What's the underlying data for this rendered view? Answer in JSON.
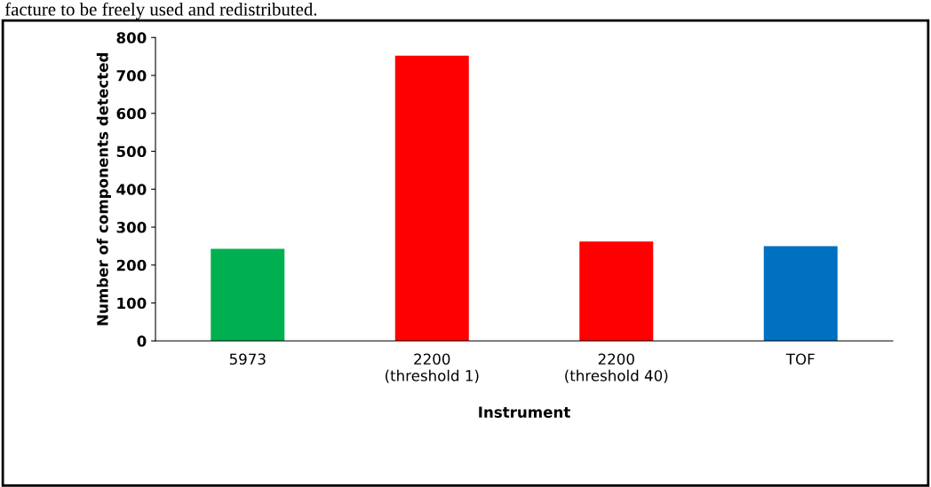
{
  "chart_data": {
    "type": "bar",
    "categories": [
      "5973",
      "2200\n(threshold 1)",
      "2200\n(threshold 40)",
      "TOF"
    ],
    "values": [
      243,
      752,
      262,
      250
    ],
    "colors": [
      "#00b050",
      "#ff0000",
      "#ff0000",
      "#0070c0"
    ],
    "xlabel": "Instrument",
    "ylabel": "Number of components detected",
    "ylim": [
      0,
      800
    ],
    "yticks": [
      0,
      100,
      200,
      300,
      400,
      500,
      600,
      700,
      800
    ],
    "grid": false,
    "legend": false,
    "annotations": [
      "facture to be freely used and redistributed."
    ]
  }
}
